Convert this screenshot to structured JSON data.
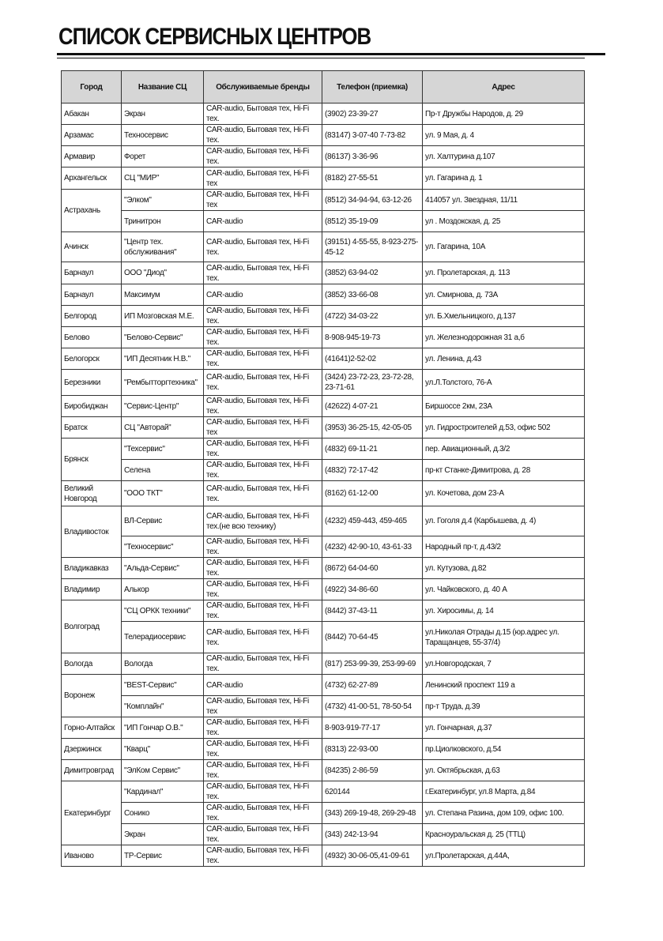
{
  "header": {
    "title": "СПИСОК СЕРВИСНЫХ ЦЕНТРОВ"
  },
  "table": {
    "columns": [
      "Город",
      "Название СЦ",
      "Обслуживаемые бренды",
      "Телефон (приемка)",
      "Адрес"
    ],
    "groups": [
      {
        "city": "Абакан",
        "rows": [
          [
            "Экран",
            "CAR-audio, Бытовая тех, Hi-Fi тех.",
            "(3902) 23-39-27",
            "Пр-т Дружбы Народов, д. 29"
          ]
        ]
      },
      {
        "city": "Арзамас",
        "rows": [
          [
            "Техносервис",
            "CAR-audio, Бытовая тех, Hi-Fi тех.",
            "(83147) 3-07-40 7-73-82",
            "ул. 9 Мая, д. 4"
          ]
        ]
      },
      {
        "city": "Армавир",
        "rows": [
          [
            "Форет",
            "CAR-audio, Бытовая тех, Hi-Fi тех.",
            "(86137) 3-36-96",
            "ул. Халтурина д.107"
          ]
        ]
      },
      {
        "city": "Архангельск",
        "rows": [
          [
            "СЦ \"МИР\"",
            "CAR-audio, Бытовая тех, Hi-Fi тех",
            "(8182) 27-55-51",
            "ул. Гагарина д. 1"
          ]
        ]
      },
      {
        "city": "Астрахань",
        "rows": [
          [
            "\"Элком\"",
            "CAR-audio, Бытовая тех, Hi-Fi тех",
            "(8512) 34-94-94, 63-12-26",
            "414057 ул. Звездная, 11/11"
          ],
          [
            "Тринитрон",
            "CAR-audio",
            "(8512) 35-19-09",
            "ул . Моздокская, д. 25"
          ]
        ]
      },
      {
        "city": "Ачинск",
        "rows": [
          [
            "\"Центр тех. обслуживания\"",
            "CAR-audio, Бытовая тех, Hi-Fi тех.",
            "(39151) 4-55-55, 8-923-275-45-12",
            "ул. Гагарина, 10А"
          ]
        ]
      },
      {
        "city": "Барнаул",
        "rows": [
          [
            "ООО \"Диод\"",
            "CAR-audio, Бытовая тех, Hi-Fi тех.",
            "(3852) 63-94-02",
            "ул. Пролетарская, д. 113"
          ]
        ]
      },
      {
        "city": "Барнаул",
        "rows": [
          [
            "Максимум",
            "CAR-audio",
            "(3852) 33-66-08",
            "ул. Смирнова, д. 73А"
          ]
        ]
      },
      {
        "city": "Белгород",
        "rows": [
          [
            "ИП Мозговская М.Е.",
            "CAR-audio, Бытовая тех, Hi-Fi тех.",
            "(4722) 34-03-22",
            "ул. Б.Хмельницкого, д.137"
          ]
        ]
      },
      {
        "city": "Белово",
        "rows": [
          [
            "\"Белово-Сервис\"",
            "CAR-audio, Бытовая тех, Hi-Fi тех.",
            "8-908-945-19-73",
            "ул. Железнодорожная 31 а,б"
          ]
        ]
      },
      {
        "city": "Белогорск",
        "rows": [
          [
            "\"ИП Десятник Н.В.\"",
            "CAR-audio, Бытовая тех, Hi-Fi тех.",
            "(41641)2-52-02",
            "ул. Ленина, д.43"
          ]
        ]
      },
      {
        "city": "Березники",
        "rows": [
          [
            "\"Рембытторгтехника\"",
            "CAR-audio, Бытовая тех, Hi-Fi тех.",
            "(3424) 23-72-23, 23-72-28, 23-71-61",
            "ул.Л.Толстого, 76-А"
          ]
        ]
      },
      {
        "city": "Биробиджан",
        "rows": [
          [
            "\"Сервис-Центр\"",
            "CAR-audio, Бытовая тех, Hi-Fi тех.",
            "(42622) 4-07-21",
            "Биршоссе 2км, 23А"
          ]
        ]
      },
      {
        "city": "Братск",
        "rows": [
          [
            "СЦ \"Авторай\"",
            "CAR-audio, Бытовая тех, Hi-Fi тех",
            "(3953) 36-25-15, 42-05-05",
            "ул. Гидростроителей д.53, офис 502"
          ]
        ]
      },
      {
        "city": "Брянск",
        "rows": [
          [
            "\"Техсервис\"",
            "CAR-audio, Бытовая тех, Hi-Fi тех.",
            "(4832) 69-11-21",
            "пер. Авиационный, д.3/2"
          ],
          [
            "Селена",
            "CAR-audio, Бытовая тех, Hi-Fi тех.",
            "(4832) 72-17-42",
            "пр-кт Станке-Димитрова, д. 28"
          ]
        ]
      },
      {
        "city": "Великий Новгород",
        "rows": [
          [
            "\"ООО ТКТ\"",
            "CAR-audio, Бытовая тех, Hi-Fi тех.",
            "(8162) 61-12-00",
            "ул. Кочетова, дом 23-А"
          ]
        ]
      },
      {
        "city": "Владивосток",
        "rows": [
          [
            "ВЛ-Сервис",
            "CAR-audio, Бытовая тех, Hi-Fi тех.(не всю технику)",
            "(4232) 459-443, 459-465",
            "ул. Гоголя д.4 (Карбышева, д. 4)"
          ],
          [
            "\"Техносервис\"",
            "CAR-audio, Бытовая тех, Hi-Fi тех.",
            "(4232) 42-90-10, 43-61-33",
            "Народный пр-т, д.43/2"
          ]
        ]
      },
      {
        "city": "Владикавказ",
        "rows": [
          [
            "\"Альда-Сервис\"",
            "CAR-audio, Бытовая тех, Hi-Fi тех.",
            "(8672) 64-04-60",
            "ул. Кутузова, д.82"
          ]
        ]
      },
      {
        "city": "Владимир",
        "rows": [
          [
            "Алькор",
            "CAR-audio, Бытовая тех, Hi-Fi тех.",
            "(4922) 34-86-60",
            "ул. Чайковского, д. 40 А"
          ]
        ]
      },
      {
        "city": "Волгоград",
        "rows": [
          [
            "\"СЦ ОРКК техники\"",
            "CAR-audio, Бытовая тех, Hi-Fi тех.",
            "(8442) 37-43-11",
            "ул. Хиросимы, д. 14"
          ],
          [
            "Телерадиосервис",
            "CAR-audio, Бытовая тех, Hi-Fi тех.",
            "(8442) 70-64-45",
            "ул.Николая Отрады д.15 (юр.адрес ул. Таращанцев, 55-37/4)"
          ]
        ]
      },
      {
        "city": "Вологда",
        "rows": [
          [
            "Вологда",
            "CAR-audio, Бытовая тех, Hi-Fi тех.",
            "(817) 253-99-39, 253-99-69",
            "ул.Новгородская, 7"
          ]
        ]
      },
      {
        "city": "Воронеж",
        "rows": [
          [
            "\"BEST-Сервис\"",
            "CAR-audio",
            "(4732) 62-27-89",
            "Ленинский проспект 119 а"
          ],
          [
            "\"Комплайн\"",
            "CAR-audio, Бытовая тех, Hi-Fi тех",
            "(4732) 41-00-51, 78-50-54",
            "пр-т Труда, д.39"
          ]
        ]
      },
      {
        "city": "Горно-Алтайск",
        "rows": [
          [
            "\"ИП Гончар О.В.\"",
            "CAR-audio, Бытовая тех, Hi-Fi тех.",
            "8-903-919-77-17",
            "ул. Гончарная, д.37"
          ]
        ]
      },
      {
        "city": "Дзержинск",
        "rows": [
          [
            "\"Кварц\"",
            "CAR-audio, Бытовая тех, Hi-Fi тех.",
            "(8313) 22-93-00",
            "пр.Циолковского, д.54"
          ]
        ]
      },
      {
        "city": "Димитровград",
        "rows": [
          [
            "\"ЭлКом Сервис\"",
            "CAR-audio, Бытовая тех, Hi-Fi тех.",
            "(84235) 2-86-59",
            "ул. Октябрьская, д.63"
          ]
        ]
      },
      {
        "city": "Екатеринбург",
        "rows": [
          [
            "\"Кардинал\"",
            "CAR-audio, Бытовая тех, Hi-Fi тех.",
            "620144",
            "г.Екатеринбург, ул.8 Марта, д.84"
          ],
          [
            "Сонико",
            "CAR-audio, Бытовая тех, Hi-Fi тех.",
            "(343) 269-19-48, 269-29-48",
            "ул. Степана Разина, дом 109, офис 100."
          ],
          [
            "Экран",
            "CAR-audio, Бытовая тех, Hi-Fi тех.",
            "(343) 242-13-94",
            "Красноуральская д. 25 (ТТЦ)"
          ]
        ]
      },
      {
        "city": "Иваново",
        "rows": [
          [
            "ТР-Сервис",
            "CAR-audio, Бытовая тех, Hi-Fi тех.",
            "(4932) 30-06-05,41-09-61",
            "ул.Пролетарская, д.44А,"
          ]
        ]
      }
    ]
  }
}
